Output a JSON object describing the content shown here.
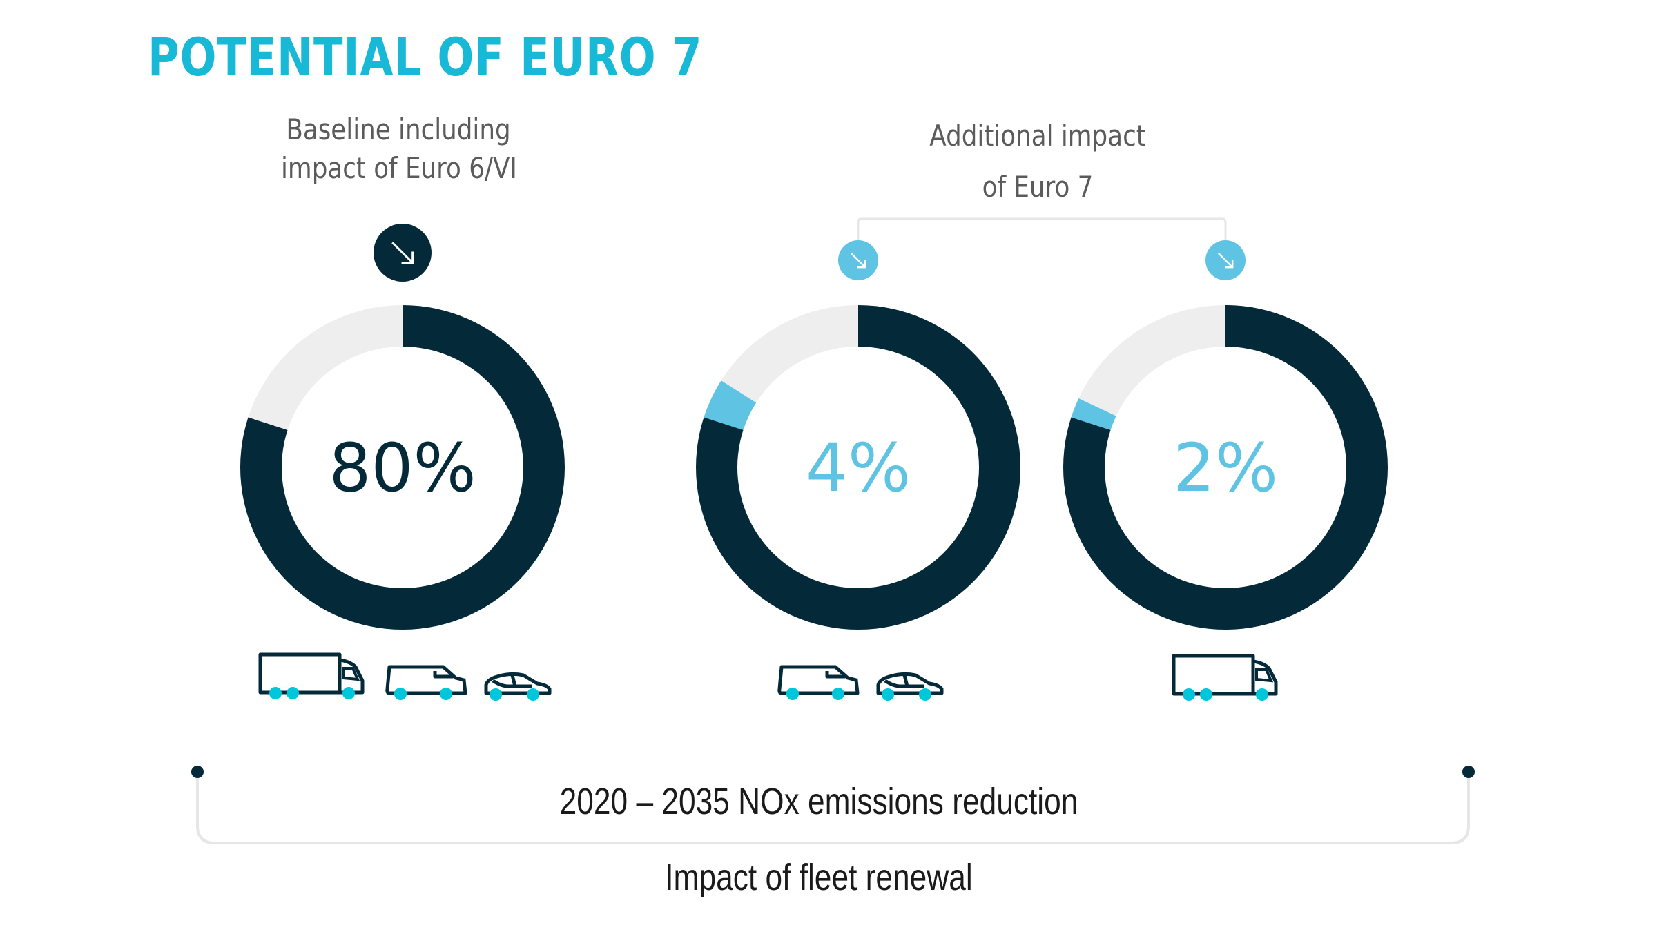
{
  "title": "POTENTIAL OF EURO 7",
  "labels": {
    "baseline": [
      "Baseline including",
      "impact of Euro 6/VI"
    ],
    "additional": [
      "Additional impact",
      "of Euro 7"
    ],
    "period": "2020 – 2035 NOx emissions reduction",
    "fleet": "Impact of fleet renewal"
  },
  "colors": {
    "title": "#17b9d6",
    "dark": "#042a3a",
    "accent": "#5fc3e3",
    "remainder": "#eeeeee",
    "wheel": "#00c6dc"
  },
  "chart_data": [
    {
      "type": "pie",
      "variant": "donut",
      "label": "80%",
      "segments": [
        {
          "value": 80,
          "color": "#042a3a"
        },
        {
          "value": 20,
          "color": "#eeeeee"
        }
      ],
      "label_color": "#042a3a",
      "icon": "arrow-down-right-dark",
      "vehicles": [
        "truck",
        "van",
        "car"
      ]
    },
    {
      "type": "pie",
      "variant": "donut",
      "label": "4%",
      "segments": [
        {
          "value": 80,
          "color": "#042a3a"
        },
        {
          "value": 4,
          "color": "#5fc3e3"
        },
        {
          "value": 16,
          "color": "#eeeeee"
        }
      ],
      "label_color": "#5fc3e3",
      "icon": "arrow-down-right-light",
      "vehicles": [
        "van",
        "car"
      ]
    },
    {
      "type": "pie",
      "variant": "donut",
      "label": "2%",
      "segments": [
        {
          "value": 80,
          "color": "#042a3a"
        },
        {
          "value": 2,
          "color": "#5fc3e3"
        },
        {
          "value": 18,
          "color": "#eeeeee"
        }
      ],
      "label_color": "#5fc3e3",
      "icon": "arrow-down-right-light",
      "vehicles": [
        "truck"
      ]
    }
  ]
}
